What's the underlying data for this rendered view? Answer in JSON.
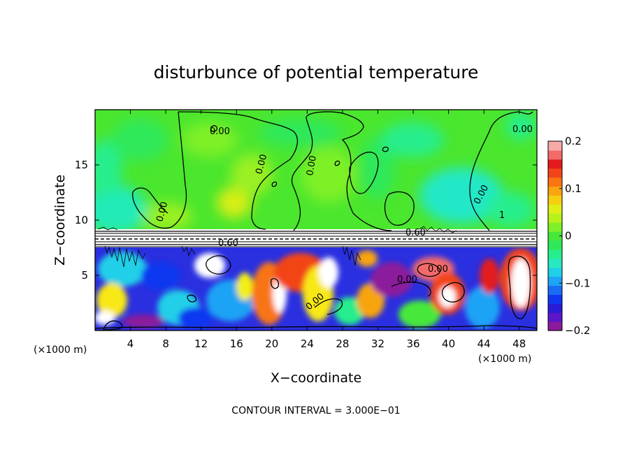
{
  "chart_data": {
    "type": "heatmap",
    "title": "disturbunce of potential temperature",
    "xlabel": "X−coordinate",
    "ylabel": "Z−coordinate",
    "x_scale_note": "(×1000 m)",
    "y_scale_note": "(×1000 m)",
    "footnote": "CONTOUR INTERVAL = 3.000E−01",
    "xlim": [
      0,
      50
    ],
    "ylim": [
      0,
      20
    ],
    "x_ticks": [
      4,
      8,
      12,
      16,
      20,
      24,
      28,
      32,
      36,
      40,
      44,
      48
    ],
    "x_tick_labels": [
      "4",
      "8",
      "12",
      "16",
      "20",
      "24",
      "28",
      "32",
      "36",
      "40",
      "44",
      "48"
    ],
    "y_ticks": [
      5,
      10,
      15
    ],
    "y_tick_labels": [
      "5",
      "10",
      "15"
    ],
    "colorbar": {
      "min": -0.2,
      "max": 0.2,
      "ticks": [
        0.2,
        0.1,
        0,
        -0.1,
        -0.2
      ],
      "tick_labels": [
        "0.2",
        "0.1",
        "0",
        "−0.1",
        "−0.2"
      ],
      "colors": [
        "#8b1a9b",
        "#5a16c8",
        "#2a1bd6",
        "#0f37f0",
        "#1a6cf5",
        "#1fa3f5",
        "#22cfe8",
        "#28e8c0",
        "#26ee8c",
        "#2ee85a",
        "#46e83a",
        "#7ef028",
        "#b8f01c",
        "#e0ee18",
        "#f6d010",
        "#f8a510",
        "#f87512",
        "#f24418",
        "#e41a1c",
        "#f26a6a",
        "#f7a9a9"
      ]
    },
    "upper_layer": {
      "z_range": [
        9,
        20
      ],
      "dominant_value": 0.0
    },
    "lower_layer": {
      "z_range": [
        0,
        7.6
      ]
    },
    "contour_labels": [
      "0.00",
      "0.00",
      "0.00",
      "0.00",
      "0.00",
      "0.60",
      "0.60",
      "0.00",
      "0.00",
      "0.00",
      "0.00",
      "1"
    ]
  }
}
